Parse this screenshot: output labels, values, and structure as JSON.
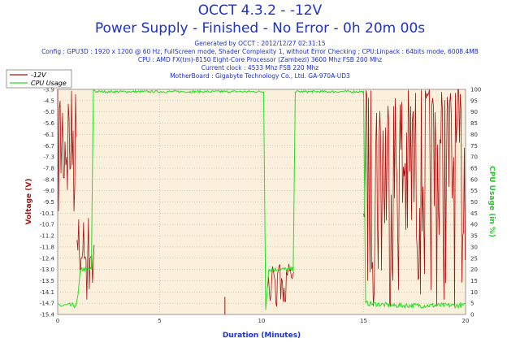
{
  "header": {
    "title": "OCCT 4.3.2 - -12V",
    "subtitle": "Power Supply - Finished - No Error - 0h 20m 00s",
    "info_lines": [
      "Generated by OCCT : 2012/12/27 02:31:15",
      "Config : GPU3D : 1920 x 1200 @ 60 Hz, FullScreen mode, Shader Complexity 1, without Error Checking ; CPU:Linpack : 64bits mode, 6008.4MB",
      "CPU : AMD FX(tm)-8150 Eight-Core Processor (Zambezi) 3600 Mhz FSB 200 Mhz",
      "Current clock : 4533 Mhz FSB 220 Mhz",
      "MotherBoard : Gigabyte Technology Co., Ltd. GA-970A-UD3"
    ]
  },
  "colors": {
    "voltage_series": "#aa1212",
    "cpu_series": "#22e022",
    "plot_background": "#fbf0dc",
    "grid": "#aaaaaa",
    "y_left_label": "#aa1212",
    "y_right_label": "#22cc22",
    "text_blue": "#1e32c8"
  },
  "chart_data": {
    "type": "line",
    "xlabel": "Duration (Minutes)",
    "ylabel_left": "Voltage (V)",
    "ylabel_right": "CPU Usage (in %)",
    "xlim": [
      0,
      20
    ],
    "ylim_left": [
      -15.4,
      -3.9
    ],
    "ylim_right": [
      0,
      100
    ],
    "x_ticks": [
      "0",
      "5",
      "10",
      "15",
      "20"
    ],
    "x_tick_values": [
      0,
      5,
      10,
      15,
      20
    ],
    "y_left_ticks": [
      "-3.9",
      "-4.5",
      "-5.0",
      "-5.6",
      "-6.1",
      "-6.7",
      "-7.3",
      "-7.8",
      "-8.4",
      "-9.0",
      "-9.5",
      "-10.1",
      "-10.7",
      "-11.2",
      "-11.8",
      "-12.4",
      "-13.0",
      "-13.5",
      "-14.1",
      "-14.7",
      "-15.4"
    ],
    "y_right_ticks": [
      "100",
      "95",
      "90",
      "85",
      "80",
      "75",
      "70",
      "65",
      "60",
      "55",
      "50",
      "45",
      "40",
      "35",
      "30",
      "25",
      "20",
      "15",
      "10",
      "5",
      "0"
    ],
    "grid": true,
    "legend_position": "top-left",
    "series": [
      {
        "name": "-12V",
        "axis": "left",
        "segments": [
          {
            "x0": 0.0,
            "x1": 0.95,
            "low": -11.0,
            "high": -3.9,
            "base": -3.9
          },
          {
            "x0": 0.95,
            "x1": 1.8,
            "low": -14.9,
            "high": -10.1,
            "base": -12.4
          },
          {
            "x0": 10.3,
            "x1": 11.6,
            "low": -15.4,
            "high": -12.6,
            "base": -13.4
          },
          {
            "x0": 15.0,
            "x1": 20.0,
            "low": -15.1,
            "high": -3.9,
            "base": -3.9
          }
        ],
        "spikes": [
          {
            "x": 8.2,
            "low": -15.4,
            "high": -14.5
          }
        ]
      },
      {
        "name": "CPU Usage",
        "axis": "right",
        "points": [
          [
            0,
            4
          ],
          [
            0.9,
            4
          ],
          [
            1.0,
            9
          ],
          [
            1.1,
            19
          ],
          [
            1.2,
            20
          ],
          [
            1.65,
            20
          ],
          [
            1.75,
            100
          ],
          [
            1.85,
            99
          ],
          [
            2.5,
            99
          ],
          [
            4.0,
            99
          ],
          [
            6.5,
            99
          ],
          [
            8.0,
            99
          ],
          [
            10.1,
            99
          ],
          [
            10.2,
            2
          ],
          [
            10.35,
            20
          ],
          [
            11.55,
            20
          ],
          [
            11.65,
            99
          ],
          [
            12.5,
            99
          ],
          [
            15.0,
            99
          ],
          [
            15.1,
            5
          ],
          [
            16.5,
            4
          ],
          [
            18.5,
            4
          ],
          [
            20.0,
            4
          ]
        ]
      }
    ]
  }
}
